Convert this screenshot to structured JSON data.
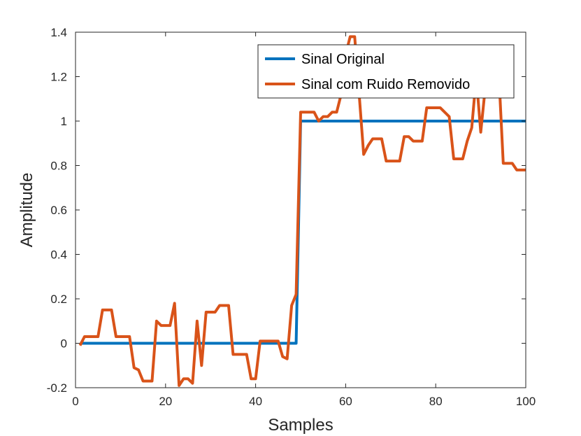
{
  "chart_data": {
    "type": "line",
    "title": "",
    "xlabel": "Samples",
    "ylabel": "Amplitude",
    "xlim": [
      0,
      100
    ],
    "ylim": [
      -0.2,
      1.4
    ],
    "xticks": [
      0,
      20,
      40,
      60,
      80,
      100
    ],
    "xtick_labels": [
      "0",
      "20",
      "40",
      "60",
      "80",
      "100"
    ],
    "yticks": [
      -0.2,
      0,
      0.2,
      0.4,
      0.6,
      0.8,
      1,
      1.2,
      1.4
    ],
    "ytick_labels": [
      "-0.2",
      "0",
      "0.2",
      "0.4",
      "0.6",
      "0.8",
      "1",
      "1.2",
      "1.4"
    ],
    "grid": false,
    "legend_position": "top-right",
    "series": [
      {
        "name": "Sinal Original",
        "color": "#0072BD",
        "x": [
          1,
          49,
          50,
          100
        ],
        "y": [
          0,
          0,
          1,
          1
        ]
      },
      {
        "name": "Sinal com Ruido Removido",
        "color": "#D95319",
        "x": [
          1,
          2,
          3,
          4,
          5,
          6,
          7,
          8,
          9,
          10,
          11,
          12,
          13,
          14,
          15,
          16,
          17,
          18,
          19,
          20,
          21,
          22,
          23,
          24,
          25,
          26,
          27,
          28,
          29,
          30,
          31,
          32,
          33,
          34,
          35,
          36,
          37,
          38,
          39,
          40,
          41,
          42,
          43,
          44,
          45,
          46,
          47,
          48,
          49,
          50,
          51,
          52,
          53,
          54,
          55,
          56,
          57,
          58,
          59,
          60,
          61,
          62,
          63,
          64,
          65,
          66,
          67,
          68,
          69,
          70,
          71,
          72,
          73,
          74,
          75,
          76,
          77,
          78,
          79,
          80,
          81,
          82,
          83,
          84,
          85,
          86,
          87,
          88,
          89,
          90,
          91,
          92,
          93,
          94,
          95,
          96,
          97,
          98,
          99,
          100
        ],
        "y": [
          -0.01,
          0.03,
          0.03,
          0.03,
          0.03,
          0.15,
          0.15,
          0.15,
          0.03,
          0.03,
          0.03,
          0.03,
          -0.11,
          -0.12,
          -0.17,
          -0.17,
          -0.17,
          0.1,
          0.08,
          0.08,
          0.08,
          0.18,
          -0.19,
          -0.16,
          -0.16,
          -0.18,
          0.1,
          -0.1,
          0.14,
          0.14,
          0.14,
          0.17,
          0.17,
          0.17,
          -0.05,
          -0.05,
          -0.05,
          -0.05,
          -0.16,
          -0.16,
          0.01,
          0.01,
          0.01,
          0.01,
          0.01,
          -0.06,
          -0.07,
          0.17,
          0.22,
          1.04,
          1.04,
          1.04,
          1.04,
          1.0,
          1.02,
          1.02,
          1.04,
          1.04,
          1.12,
          1.3,
          1.38,
          1.38,
          1.12,
          0.85,
          0.89,
          0.92,
          0.92,
          0.92,
          0.82,
          0.82,
          0.82,
          0.82,
          0.93,
          0.93,
          0.91,
          0.91,
          0.91,
          1.06,
          1.06,
          1.06,
          1.06,
          1.04,
          1.02,
          0.83,
          0.83,
          0.83,
          0.91,
          0.97,
          1.2,
          0.95,
          1.15,
          1.3,
          1.3,
          1.22,
          0.81,
          0.81,
          0.81,
          0.78,
          0.78,
          0.78
        ]
      }
    ]
  }
}
